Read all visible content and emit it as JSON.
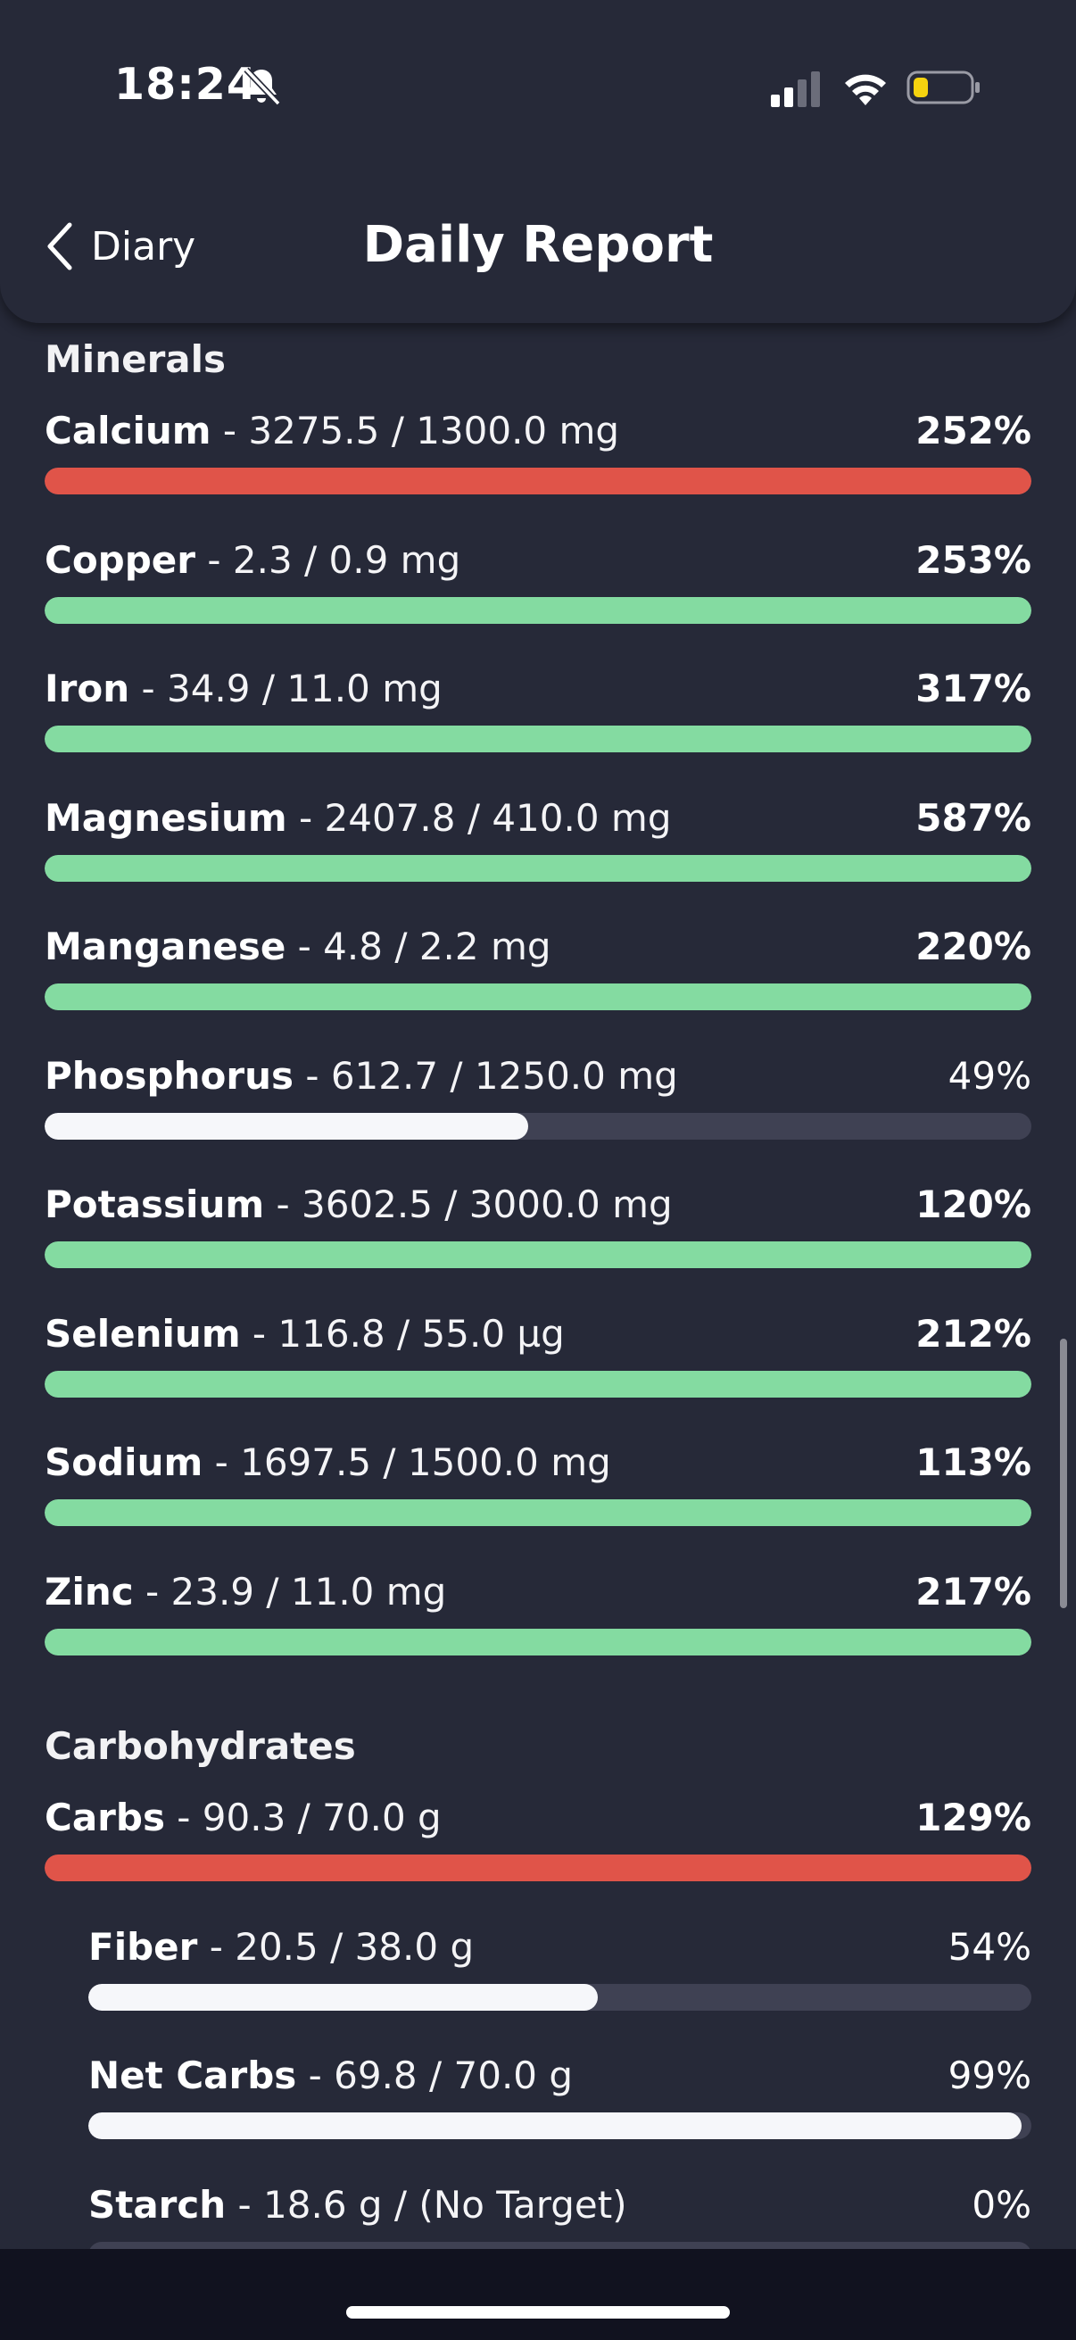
{
  "status_bar": {
    "time": "18:24",
    "icons": [
      "bell-slash-icon",
      "cellular-signal-icon",
      "wifi-icon",
      "battery-low-icon"
    ]
  },
  "header": {
    "back_label": "Diary",
    "title": "Daily Report"
  },
  "colors": {
    "background": "#262938",
    "over_target": "#e05449",
    "good": "#84dba1",
    "partial": "#f6f7fa",
    "track": "#3f4153"
  },
  "sections": [
    {
      "title": "Minerals",
      "items": [
        {
          "name": "Calcium",
          "detail": " - 3275.5 / 1300.0 mg",
          "percent_label": "252%",
          "fill_fraction": 1.0,
          "status": "over"
        },
        {
          "name": "Copper",
          "detail": " - 2.3 / 0.9 mg",
          "percent_label": "253%",
          "fill_fraction": 1.0,
          "status": "good"
        },
        {
          "name": "Iron",
          "detail": " - 34.9 / 11.0 mg",
          "percent_label": "317%",
          "fill_fraction": 1.0,
          "status": "good"
        },
        {
          "name": "Magnesium",
          "detail": " - 2407.8 / 410.0 mg",
          "percent_label": "587%",
          "fill_fraction": 1.0,
          "status": "good"
        },
        {
          "name": "Manganese",
          "detail": " - 4.8 / 2.2 mg",
          "percent_label": "220%",
          "fill_fraction": 1.0,
          "status": "good"
        },
        {
          "name": "Phosphorus",
          "detail": " - 612.7 / 1250.0 mg",
          "percent_label": "49%",
          "fill_fraction": 0.49,
          "status": "partial"
        },
        {
          "name": "Potassium",
          "detail": " - 3602.5 / 3000.0 mg",
          "percent_label": "120%",
          "fill_fraction": 1.0,
          "status": "good"
        },
        {
          "name": "Selenium",
          "detail": " - 116.8 / 55.0 µg",
          "percent_label": "212%",
          "fill_fraction": 1.0,
          "status": "good"
        },
        {
          "name": "Sodium",
          "detail": " - 1697.5 / 1500.0 mg",
          "percent_label": "113%",
          "fill_fraction": 1.0,
          "status": "good"
        },
        {
          "name": "Zinc",
          "detail": " - 23.9 / 11.0 mg",
          "percent_label": "217%",
          "fill_fraction": 1.0,
          "status": "good"
        }
      ]
    },
    {
      "title": "Carbohydrates",
      "items": [
        {
          "name": "Carbs",
          "detail": " - 90.3 / 70.0 g",
          "percent_label": "129%",
          "fill_fraction": 1.0,
          "status": "over"
        },
        {
          "name": "Fiber",
          "detail": " - 20.5 / 38.0 g",
          "percent_label": "54%",
          "fill_fraction": 0.54,
          "status": "partial",
          "sub": true
        },
        {
          "name": "Net Carbs",
          "detail": " - 69.8 / 70.0 g",
          "percent_label": "99%",
          "fill_fraction": 0.99,
          "status": "partial",
          "sub": true
        },
        {
          "name": "Starch",
          "detail": " - 18.6 g / (No Target)",
          "percent_label": "0%",
          "fill_fraction": 0.0,
          "status": "partial",
          "sub": true
        }
      ]
    }
  ]
}
